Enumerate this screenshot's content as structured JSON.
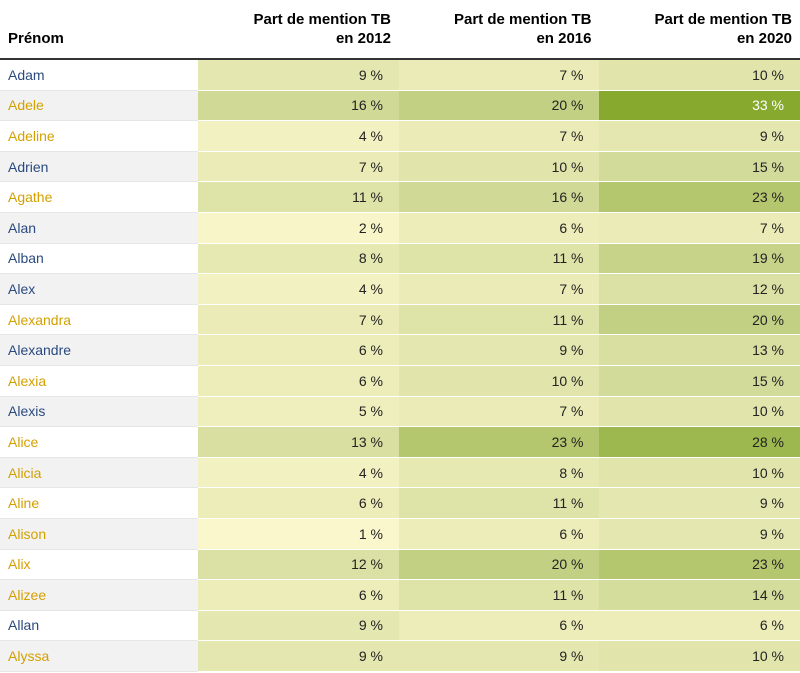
{
  "chart_data": {
    "type": "table",
    "headers": [
      "Prénom",
      "Part de mention TB en 2012",
      "Part de mention TB en 2016",
      "Part de mention TB en 2020"
    ],
    "header_lines": [
      [
        "Prénom"
      ],
      [
        "Part de mention TB",
        "en 2012"
      ],
      [
        "Part de mention TB",
        "en 2016"
      ],
      [
        "Part de mention TB",
        "en 2020"
      ]
    ],
    "unit": "%",
    "rows": [
      {
        "name": "Adam",
        "gender": "m",
        "values": [
          9,
          7,
          10
        ]
      },
      {
        "name": "Adele",
        "gender": "f",
        "values": [
          16,
          20,
          33
        ]
      },
      {
        "name": "Adeline",
        "gender": "f",
        "values": [
          4,
          7,
          9
        ]
      },
      {
        "name": "Adrien",
        "gender": "m",
        "values": [
          7,
          10,
          15
        ]
      },
      {
        "name": "Agathe",
        "gender": "f",
        "values": [
          11,
          16,
          23
        ]
      },
      {
        "name": "Alan",
        "gender": "m",
        "values": [
          2,
          6,
          7
        ]
      },
      {
        "name": "Alban",
        "gender": "m",
        "values": [
          8,
          11,
          19
        ]
      },
      {
        "name": "Alex",
        "gender": "m",
        "values": [
          4,
          7,
          12
        ]
      },
      {
        "name": "Alexandra",
        "gender": "f",
        "values": [
          7,
          11,
          20
        ]
      },
      {
        "name": "Alexandre",
        "gender": "m",
        "values": [
          6,
          9,
          13
        ]
      },
      {
        "name": "Alexia",
        "gender": "f",
        "values": [
          6,
          10,
          15
        ]
      },
      {
        "name": "Alexis",
        "gender": "m",
        "values": [
          5,
          7,
          10
        ]
      },
      {
        "name": "Alice",
        "gender": "f",
        "values": [
          13,
          23,
          28
        ]
      },
      {
        "name": "Alicia",
        "gender": "f",
        "values": [
          4,
          8,
          10
        ]
      },
      {
        "name": "Aline",
        "gender": "f",
        "values": [
          6,
          11,
          9
        ]
      },
      {
        "name": "Alison",
        "gender": "f",
        "values": [
          1,
          6,
          9
        ]
      },
      {
        "name": "Alix",
        "gender": "f",
        "values": [
          12,
          20,
          23
        ]
      },
      {
        "name": "Alizee",
        "gender": "f",
        "values": [
          6,
          11,
          14
        ]
      },
      {
        "name": "Allan",
        "gender": "m",
        "values": [
          9,
          6,
          6
        ]
      },
      {
        "name": "Alyssa",
        "gender": "f",
        "values": [
          9,
          9,
          10
        ]
      }
    ],
    "color_scale": {
      "low": "#fbf7cc",
      "mid": "#c8d48c",
      "high": "#86a92e",
      "domain": [
        1,
        33
      ]
    },
    "name_colors": {
      "m": "#2a4a7f",
      "f": "#d4a000"
    },
    "row_stripe": "#f2f2f2"
  }
}
